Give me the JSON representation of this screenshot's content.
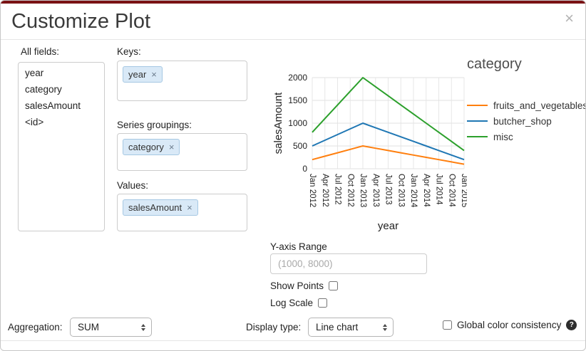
{
  "title": "Customize Plot",
  "close": "×",
  "colors": {
    "top_bar": "#7a1214",
    "tag_bg": "#d9e9f7",
    "tag_border": "#a6c8e3"
  },
  "all_fields": {
    "label": "All fields:",
    "items": [
      "year",
      "category",
      "salesAmount",
      "<id>"
    ]
  },
  "keys": {
    "label": "Keys:",
    "tag": "year",
    "remove": "×"
  },
  "series_groupings": {
    "label": "Series groupings:",
    "tag": "category",
    "remove": "×"
  },
  "values": {
    "label": "Values:",
    "tag": "salesAmount",
    "remove": "×"
  },
  "y_axis_range": {
    "label": "Y-axis Range",
    "placeholder": "(1000, 8000)"
  },
  "show_points": {
    "label": "Show Points",
    "checked": false
  },
  "log_scale": {
    "label": "Log Scale",
    "checked": false
  },
  "aggregation": {
    "label": "Aggregation:",
    "value": "SUM"
  },
  "display_type": {
    "label": "Display type:",
    "value": "Line chart"
  },
  "global_color": {
    "label": "Global color consistency",
    "help": "?",
    "checked": false
  },
  "chart_data": {
    "type": "line",
    "title": "",
    "xlabel": "year",
    "ylabel": "salesAmount",
    "ylim": [
      0,
      2000
    ],
    "yticks": [
      0,
      500,
      1000,
      1500,
      2000
    ],
    "x": [
      "Jan 2012",
      "Apr 2012",
      "Jul 2012",
      "Oct 2012",
      "Jan 2013",
      "Apr 2013",
      "Jul 2013",
      "Oct 2013",
      "Jan 2014",
      "Apr 2014",
      "Jul 2014",
      "Oct 2014",
      "Jan 2015"
    ],
    "grid": true,
    "legend_title": "category",
    "legend_position": "right",
    "series": [
      {
        "name": "fruits_and_vegetables",
        "color": "#ff7f0e",
        "values": [
          200,
          275,
          350,
          425,
          500,
          450,
          400,
          350,
          300,
          250,
          200,
          150,
          100
        ]
      },
      {
        "name": "butcher_shop",
        "color": "#1f77b4",
        "values": [
          500,
          625,
          750,
          875,
          1000,
          900,
          800,
          700,
          600,
          500,
          400,
          300,
          200
        ]
      },
      {
        "name": "misc",
        "color": "#2ca02c",
        "values": [
          800,
          1100,
          1400,
          1700,
          2000,
          1800,
          1600,
          1400,
          1200,
          1000,
          800,
          600,
          400
        ]
      }
    ]
  }
}
